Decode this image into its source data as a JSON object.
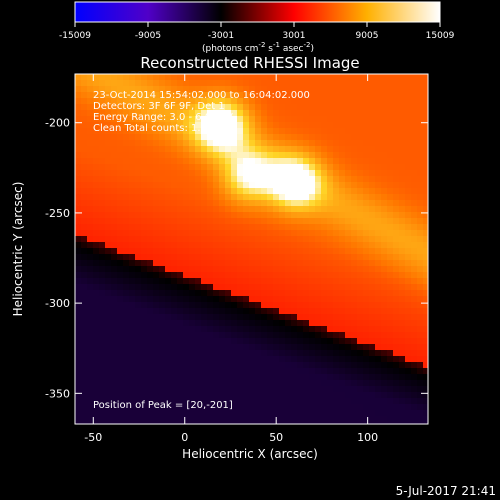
{
  "chart_data": {
    "type": "heatmap",
    "title": "Reconstructed RHESSI Image",
    "xlabel": "Heliocentric X (arcsec)",
    "ylabel": "Heliocentric Y (arcsec)",
    "xlim": [
      -60,
      133
    ],
    "ylim": [
      -367,
      -173
    ],
    "xticks": [
      -50,
      0,
      50,
      100
    ],
    "yticks": [
      -200,
      -250,
      -300,
      -350
    ],
    "colorbar": {
      "range": [
        -15009,
        15009
      ],
      "ticks": [
        -15009,
        -9005,
        -3001,
        3001,
        9005,
        15009
      ],
      "unit_label": "(photons cm",
      "unit_sup1": "-2",
      "unit_mid": " s",
      "unit_sup2": "-1",
      "unit_mid2": " asec",
      "unit_sup3": "-2",
      "unit_end": ")",
      "colormap": [
        "#0000ff",
        "#5000c8",
        "#000000",
        "#ff0000",
        "#ffb000",
        "#ffffff"
      ]
    },
    "sources": [
      {
        "x": 20,
        "y": -201,
        "peak": 1.0
      },
      {
        "x": 60,
        "y": -233,
        "peak": 0.95
      },
      {
        "x": 35,
        "y": -230,
        "peak": 0.7
      }
    ],
    "info_lines": [
      "23-Oct-2014 15:54:02.000 to 16:04:02.000",
      "Detectors: 3F 6F 9F, Det 1",
      "Energy Range: 3.0 - 6.0 keV",
      "Clean    Total counts: 1.0E+06"
    ],
    "peak_note": "Position of Peak = [20,-201]",
    "timestamp": "5-Jul-2017 21:41"
  }
}
